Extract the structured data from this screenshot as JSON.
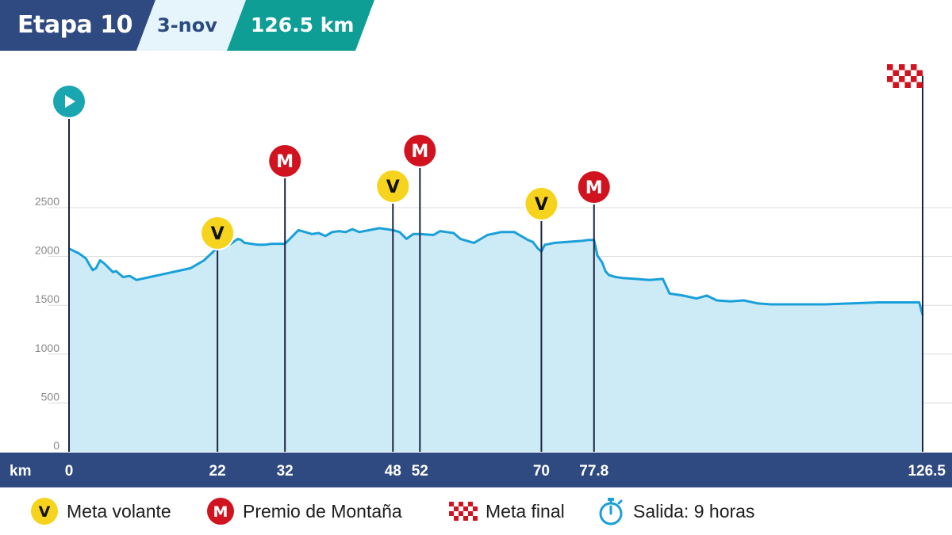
{
  "header": {
    "stage": "Etapa 10",
    "date": "3-nov",
    "distance": "126.5 km"
  },
  "colors": {
    "navy": "#2f4a80",
    "light_blue_bg": "#e6f4fb",
    "teal": "#0f9e96",
    "profile_line": "#1aa0d8",
    "profile_fill": "#cdeaf7",
    "sprint_yellow": "#f6d31c",
    "mountain_red": "#d0131f",
    "start_teal": "#1aa6b1"
  },
  "legend": {
    "sprint_letter": "V",
    "sprint_label": "Meta volante",
    "mountain_letter": "M",
    "mountain_label": "Premio de Montaña",
    "finish_label": "Meta final",
    "start_label": "Salida: 9 horas"
  },
  "chart_data": {
    "type": "area",
    "xlabel": "km",
    "ylabel": "",
    "xlim": [
      0,
      126.5
    ],
    "ylim": [
      0,
      3000
    ],
    "y_ticks": [
      0,
      500,
      1000,
      1500,
      2000,
      2500
    ],
    "x_ticks": [
      "0",
      "22",
      "32",
      "48",
      "52",
      "70",
      "77.8",
      "126.5"
    ],
    "grid": true,
    "series": [
      {
        "x": [
          0,
          1.5,
          2.5,
          3,
          3.5,
          4,
          4.6,
          5.2,
          6.5,
          7,
          8,
          9,
          10,
          12,
          14,
          16,
          18,
          20,
          22,
          24,
          25,
          25.5,
          26,
          27,
          28,
          29,
          30,
          32,
          34,
          36,
          37,
          38,
          39,
          40,
          41,
          42,
          43,
          46,
          48,
          49,
          50,
          51,
          52,
          54,
          55,
          56,
          57,
          58,
          60,
          62,
          64,
          66,
          68,
          68.7,
          69.5,
          70,
          70.5,
          72,
          74,
          76,
          77,
          77.8,
          78.3,
          79,
          79.5,
          80,
          81,
          82,
          84,
          86,
          88,
          89,
          90,
          91,
          93,
          94.5,
          96,
          98,
          100,
          102,
          104,
          108,
          112,
          116,
          120,
          123,
          126,
          126.5
        ],
        "y": [
          2080,
          2030,
          1980,
          1920,
          1860,
          1880,
          1960,
          1930,
          1840,
          1850,
          1790,
          1800,
          1760,
          1790,
          1820,
          1850,
          1880,
          1960,
          2090,
          2130,
          2180,
          2170,
          2140,
          2130,
          2120,
          2120,
          2130,
          2130,
          2270,
          2230,
          2240,
          2210,
          2250,
          2260,
          2250,
          2280,
          2250,
          2290,
          2270,
          2250,
          2180,
          2230,
          2230,
          2220,
          2260,
          2250,
          2240,
          2180,
          2140,
          2220,
          2250,
          2250,
          2170,
          2150,
          2080,
          2050,
          2120,
          2140,
          2150,
          2160,
          2170,
          2170,
          2010,
          1940,
          1850,
          1810,
          1790,
          1780,
          1770,
          1760,
          1770,
          1620,
          1610,
          1600,
          1570,
          1600,
          1550,
          1540,
          1550,
          1520,
          1510,
          1510,
          1510,
          1520,
          1530,
          1530,
          1530,
          1400
        ]
      }
    ],
    "markers": [
      {
        "km": 0,
        "type": "start",
        "label": ""
      },
      {
        "km": 22,
        "type": "sprint",
        "label": "V"
      },
      {
        "km": 32,
        "type": "mountain",
        "label": "M"
      },
      {
        "km": 48,
        "type": "sprint",
        "label": "V"
      },
      {
        "km": 52,
        "type": "mountain",
        "label": "M"
      },
      {
        "km": 70,
        "type": "sprint",
        "label": "V"
      },
      {
        "km": 77.8,
        "type": "mountain",
        "label": "M"
      },
      {
        "km": 126.5,
        "type": "finish",
        "label": ""
      }
    ]
  }
}
